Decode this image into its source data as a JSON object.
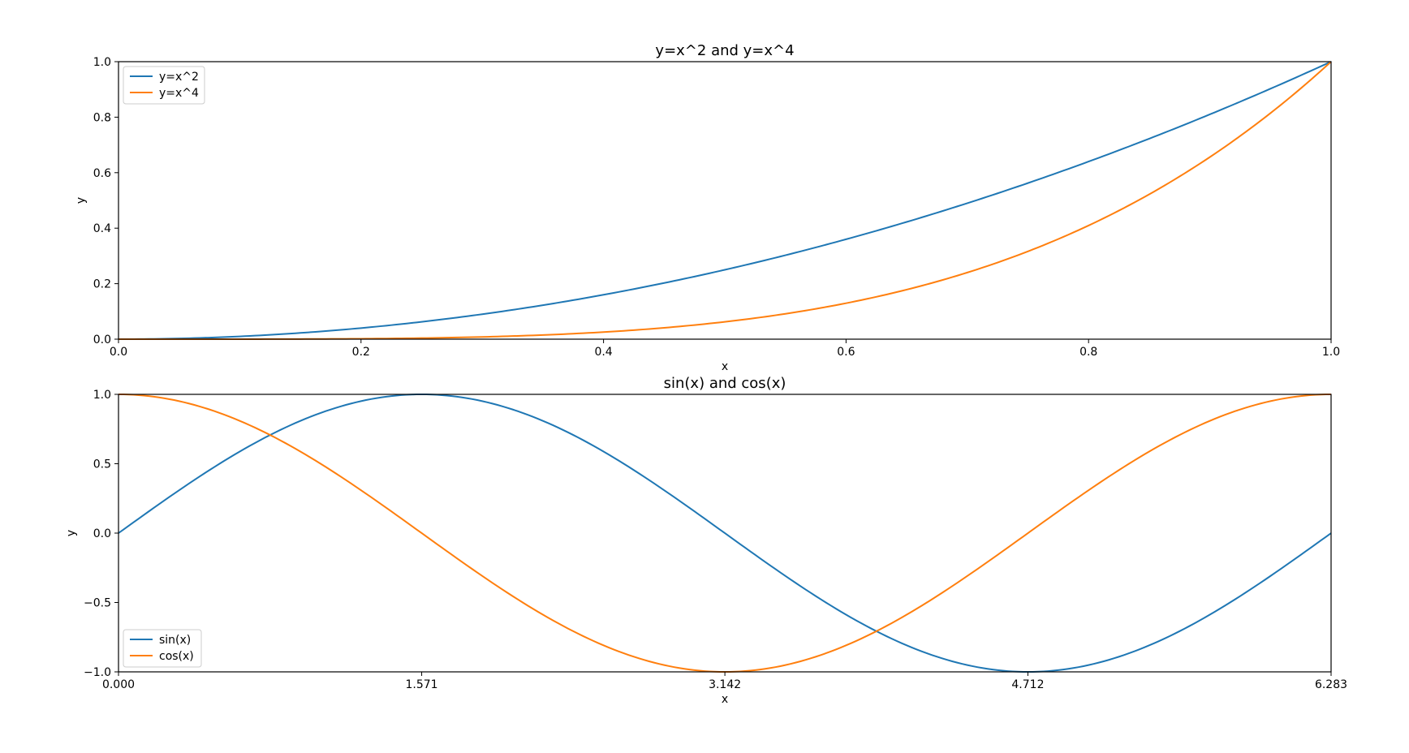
{
  "chart_data": [
    {
      "type": "line",
      "title": "y=x^2 and y=x^4",
      "xlabel": "x",
      "ylabel": "y",
      "xlim": [
        0.0,
        1.0
      ],
      "ylim": [
        0.0,
        1.0
      ],
      "xticks": [
        0.0,
        0.2,
        0.4,
        0.6,
        0.8,
        1.0
      ],
      "xtick_labels": [
        "0.0",
        "0.2",
        "0.4",
        "0.6",
        "0.8",
        "1.0"
      ],
      "yticks": [
        0.0,
        0.2,
        0.4,
        0.6,
        0.8,
        1.0
      ],
      "ytick_labels": [
        "0.0",
        "0.2",
        "0.4",
        "0.6",
        "0.8",
        "1.0"
      ],
      "grid": false,
      "legend_position": "upper-left",
      "x": [
        0.0,
        0.05,
        0.1,
        0.15,
        0.2,
        0.25,
        0.3,
        0.35,
        0.4,
        0.45,
        0.5,
        0.55,
        0.6,
        0.65,
        0.7,
        0.75,
        0.8,
        0.85,
        0.9,
        0.95,
        1.0
      ],
      "series": [
        {
          "name": "y=x^2",
          "color": "#1f77b4",
          "values": [
            0.0,
            0.0025,
            0.01,
            0.0225,
            0.04,
            0.0625,
            0.09,
            0.1225,
            0.16,
            0.2025,
            0.25,
            0.3025,
            0.36,
            0.4225,
            0.49,
            0.5625,
            0.64,
            0.7225,
            0.81,
            0.9025,
            1.0
          ]
        },
        {
          "name": "y=x^4",
          "color": "#ff7f0e",
          "values": [
            0.0,
            0.0,
            0.0001,
            0.0005,
            0.0016,
            0.0039,
            0.0081,
            0.015,
            0.0256,
            0.041,
            0.0625,
            0.0915,
            0.1296,
            0.1785,
            0.2401,
            0.3164,
            0.4096,
            0.522,
            0.6561,
            0.8145,
            1.0
          ]
        }
      ]
    },
    {
      "type": "line",
      "title": "sin(x) and cos(x)",
      "xlabel": "x",
      "ylabel": "y",
      "xlim": [
        0.0,
        6.283
      ],
      "ylim": [
        -1.0,
        1.0
      ],
      "xticks": [
        0.0,
        1.571,
        3.142,
        4.712,
        6.283
      ],
      "xtick_labels": [
        "0.000",
        "1.571",
        "3.142",
        "4.712",
        "6.283"
      ],
      "yticks": [
        -1.0,
        -0.5,
        0.0,
        0.5,
        1.0
      ],
      "ytick_labels": [
        "−1.0",
        "−0.5",
        "0.0",
        "0.5",
        "1.0"
      ],
      "grid": false,
      "legend_position": "lower-left",
      "x": [
        0.0,
        0.3142,
        0.6283,
        0.9425,
        1.2566,
        1.5708,
        1.885,
        2.1991,
        2.5133,
        2.8274,
        3.1416,
        3.4558,
        3.7699,
        4.0841,
        4.3982,
        4.7124,
        5.0265,
        5.3407,
        5.6549,
        5.969,
        6.2832
      ],
      "series": [
        {
          "name": "sin(x)",
          "color": "#1f77b4",
          "values": [
            0.0,
            0.309,
            0.5878,
            0.809,
            0.9511,
            1.0,
            0.9511,
            0.809,
            0.5878,
            0.309,
            0.0,
            -0.309,
            -0.5878,
            -0.809,
            -0.9511,
            -1.0,
            -0.9511,
            -0.809,
            -0.5878,
            -0.309,
            0.0
          ]
        },
        {
          "name": "cos(x)",
          "color": "#ff7f0e",
          "values": [
            1.0,
            0.9511,
            0.809,
            0.5878,
            0.309,
            0.0,
            -0.309,
            -0.5878,
            -0.809,
            -0.9511,
            -1.0,
            -0.9511,
            -0.809,
            -0.5878,
            -0.309,
            0.0,
            0.309,
            0.5878,
            0.809,
            0.9511,
            1.0
          ]
        }
      ]
    }
  ]
}
